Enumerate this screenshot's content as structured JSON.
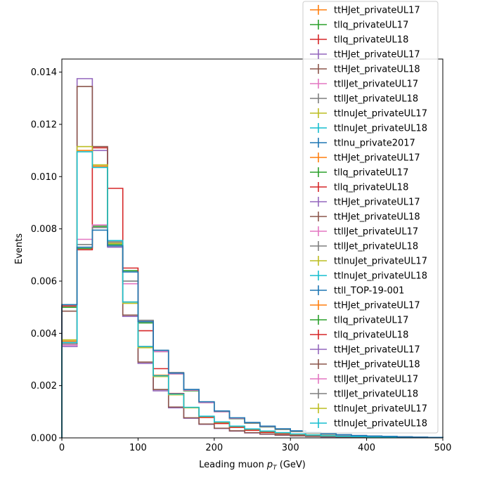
{
  "chart_data": {
    "type": "histogram-step",
    "xlabel_prefix": "Leading muon ",
    "xlabel_math_base": "p",
    "xlabel_math_sub": "T",
    "xlabel_suffix": " (GeV)",
    "ylabel": "Events",
    "xlim": [
      0,
      500
    ],
    "ylim": [
      0,
      0.0145
    ],
    "x_ticks": [
      0,
      100,
      200,
      300,
      400,
      500
    ],
    "y_ticks": [
      0.0,
      0.002,
      0.004,
      0.006,
      0.008,
      0.01,
      0.012,
      0.014
    ],
    "x_tick_labels": [
      "0",
      "100",
      "200",
      "300",
      "400",
      "500"
    ],
    "y_tick_labels": [
      "0.000",
      "0.002",
      "0.004",
      "0.006",
      "0.008",
      "0.010",
      "0.012",
      "0.014"
    ],
    "bin_edges": [
      0,
      20,
      40,
      60,
      80,
      100,
      120,
      140,
      160,
      180,
      200,
      220,
      240,
      260,
      280,
      300,
      320,
      340,
      360,
      380,
      400,
      420,
      440,
      460,
      480,
      500
    ],
    "grid": false,
    "legend_position": "top-right",
    "series": [
      {
        "name": "ttHJet_privateUL17",
        "color": "#ff7f0e",
        "values": [
          0.0037,
          0.011,
          0.0104,
          0.0075,
          0.0052,
          0.0035,
          0.0024,
          0.0017,
          0.00115,
          0.0008,
          0.00058,
          0.00042,
          0.00031,
          0.00023,
          0.00017,
          0.00013,
          0.0001,
          8e-05,
          6e-05,
          5e-05,
          4e-05,
          3e-05,
          2e-05,
          2e-05,
          1e-05
        ]
      },
      {
        "name": "tllq_privateUL17",
        "color": "#2ca02c",
        "values": [
          0.005,
          0.00725,
          0.0081,
          0.0074,
          0.0064,
          0.0044,
          0.0033,
          0.00245,
          0.0018,
          0.00135,
          0.001,
          0.00073,
          0.00056,
          0.00042,
          0.00032,
          0.00024,
          0.00018,
          0.00014,
          0.00011,
          8e-05,
          6e-05,
          5e-05,
          4e-05,
          3e-05,
          2e-05
        ]
      },
      {
        "name": "tllq_privateUL18",
        "color": "#d62728",
        "values": [
          0.00505,
          0.0072,
          0.0111,
          0.00955,
          0.0065,
          0.0041,
          0.00265,
          0.0017,
          0.00115,
          0.00078,
          0.00055,
          0.0004,
          0.00029,
          0.00021,
          0.00016,
          0.00012,
          9e-05,
          7e-05,
          5e-05,
          4e-05,
          3e-05,
          2e-05,
          2e-05,
          1e-05,
          1e-05
        ]
      },
      {
        "name": "ttHJet_privateUL17",
        "color": "#9467bd",
        "values": [
          0.0035,
          0.01375,
          0.011,
          0.0073,
          0.00465,
          0.00285,
          0.0018,
          0.00115,
          0.00075,
          0.00052,
          0.00036,
          0.00026,
          0.00019,
          0.00014,
          0.0001,
          8e-05,
          6e-05,
          4e-05,
          3e-05,
          3e-05,
          2e-05,
          2e-05,
          1e-05,
          1e-05,
          1e-05
        ]
      },
      {
        "name": "ttHJet_privateUL18",
        "color": "#8c564b",
        "values": [
          0.00485,
          0.01345,
          0.01115,
          0.00735,
          0.0047,
          0.0029,
          0.00185,
          0.00118,
          0.00077,
          0.00053,
          0.00037,
          0.00027,
          0.0002,
          0.00015,
          0.00011,
          8e-05,
          6e-05,
          5e-05,
          4e-05,
          3e-05,
          2e-05,
          2e-05,
          1e-05,
          1e-05,
          1e-05
        ]
      },
      {
        "name": "ttllJet_privateUL17",
        "color": "#e377c2",
        "values": [
          0.00355,
          0.0076,
          0.00815,
          0.00745,
          0.0059,
          0.00445,
          0.0033,
          0.00245,
          0.00182,
          0.00135,
          0.001,
          0.00074,
          0.00057,
          0.00043,
          0.00033,
          0.00025,
          0.00019,
          0.00015,
          0.00011,
          9e-05,
          7e-05,
          5e-05,
          4e-05,
          3e-05,
          2e-05
        ]
      },
      {
        "name": "ttllJet_privateUL18",
        "color": "#7f7f7f",
        "values": [
          0.0036,
          0.0074,
          0.00805,
          0.0075,
          0.006,
          0.0045,
          0.00335,
          0.0025,
          0.00185,
          0.00138,
          0.00102,
          0.00076,
          0.00058,
          0.00044,
          0.00034,
          0.00026,
          0.0002,
          0.00015,
          0.00012,
          9e-05,
          7e-05,
          5e-05,
          4e-05,
          3e-05,
          2e-05
        ]
      },
      {
        "name": "ttlnuJet_privateUL17",
        "color": "#bcbd22",
        "values": [
          0.00375,
          0.01115,
          0.01045,
          0.00745,
          0.00515,
          0.00345,
          0.00235,
          0.00165,
          0.00115,
          0.00082,
          0.0006,
          0.00044,
          0.00033,
          0.00025,
          0.00019,
          0.00014,
          0.00011,
          8e-05,
          6e-05,
          5e-05,
          4e-05,
          3e-05,
          2e-05,
          2e-05,
          1e-05
        ]
      },
      {
        "name": "ttlnuJet_privateUL18",
        "color": "#17becf",
        "values": [
          0.00365,
          0.01095,
          0.01035,
          0.00755,
          0.0052,
          0.0035,
          0.00238,
          0.00168,
          0.00117,
          0.00083,
          0.00061,
          0.00045,
          0.00034,
          0.00026,
          0.0002,
          0.00015,
          0.00011,
          8e-05,
          6e-05,
          5e-05,
          4e-05,
          3e-05,
          2e-05,
          2e-05,
          1e-05
        ]
      },
      {
        "name": "ttlnu_private2017",
        "color": "#1f77b4",
        "values": [
          0.0051,
          0.0073,
          0.00795,
          0.00735,
          0.00635,
          0.00445,
          0.00335,
          0.00248,
          0.00185,
          0.00138,
          0.00103,
          0.00077,
          0.00059,
          0.00045,
          0.00035,
          0.00027,
          0.00021,
          0.00016,
          0.00012,
          9e-05,
          7e-05,
          6e-05,
          4e-05,
          3e-05,
          2e-05
        ]
      },
      {
        "name": "ttHJet_privateUL17",
        "color": "#ff7f0e",
        "values": []
      },
      {
        "name": "tllq_privateUL17",
        "color": "#2ca02c",
        "values": []
      },
      {
        "name": "tllq_privateUL18",
        "color": "#d62728",
        "values": []
      },
      {
        "name": "ttHJet_privateUL17",
        "color": "#9467bd",
        "values": []
      },
      {
        "name": "ttHJet_privateUL18",
        "color": "#8c564b",
        "values": []
      },
      {
        "name": "ttllJet_privateUL17",
        "color": "#e377c2",
        "values": []
      },
      {
        "name": "ttllJet_privateUL18",
        "color": "#7f7f7f",
        "values": []
      },
      {
        "name": "ttlnuJet_privateUL17",
        "color": "#bcbd22",
        "values": []
      },
      {
        "name": "ttlnuJet_privateUL18",
        "color": "#17becf",
        "values": []
      },
      {
        "name": "ttll_TOP-19-001",
        "color": "#1f77b4",
        "values": []
      },
      {
        "name": "ttHJet_privateUL17",
        "color": "#ff7f0e",
        "values": []
      },
      {
        "name": "tllq_privateUL17",
        "color": "#2ca02c",
        "values": []
      },
      {
        "name": "tllq_privateUL18",
        "color": "#d62728",
        "values": []
      },
      {
        "name": "ttHJet_privateUL17",
        "color": "#9467bd",
        "values": []
      },
      {
        "name": "ttHJet_privateUL18",
        "color": "#8c564b",
        "values": []
      },
      {
        "name": "ttllJet_privateUL17",
        "color": "#e377c2",
        "values": []
      },
      {
        "name": "ttllJet_privateUL18",
        "color": "#7f7f7f",
        "values": []
      },
      {
        "name": "ttlnuJet_privateUL17",
        "color": "#bcbd22",
        "values": []
      },
      {
        "name": "ttlnuJet_privateUL18",
        "color": "#17becf",
        "values": []
      }
    ]
  }
}
